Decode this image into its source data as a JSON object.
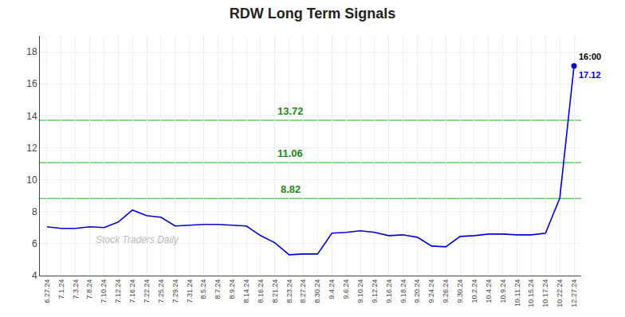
{
  "chart_data": {
    "type": "line",
    "title": "RDW Long Term Signals",
    "color": "#0000CC",
    "categories": [
      "6.27.24",
      "7.1.24",
      "7.3.24",
      "7.8.24",
      "7.10.24",
      "7.12.24",
      "7.16.24",
      "7.22.24",
      "7.25.24",
      "7.29.24",
      "7.31.24",
      "8.5.24",
      "8.7.24",
      "8.9.24",
      "8.14.24",
      "8.16.24",
      "8.21.24",
      "8.23.24",
      "8.27.24",
      "8.30.24",
      "9.4.24",
      "9.6.24",
      "9.10.24",
      "9.12.24",
      "9.16.24",
      "9.18.24",
      "9.20.24",
      "9.24.24",
      "9.26.24",
      "9.30.24",
      "10.2.24",
      "10.4.24",
      "10.9.24",
      "10.11.24",
      "10.15.24",
      "10.17.24",
      "10.22.24",
      "12.27.24"
    ],
    "values": [
      7.05,
      6.95,
      6.95,
      7.05,
      7.0,
      7.35,
      8.1,
      7.75,
      7.65,
      7.1,
      7.15,
      7.2,
      7.2,
      7.15,
      7.1,
      6.5,
      6.05,
      5.3,
      5.35,
      5.35,
      6.65,
      6.7,
      6.8,
      6.7,
      6.5,
      6.55,
      6.4,
      5.85,
      5.8,
      6.45,
      6.5,
      6.6,
      6.6,
      6.55,
      6.55,
      6.65,
      8.85,
      17.12
    ],
    "ylim": [
      4,
      19
    ],
    "yticks": [
      4,
      6,
      8,
      10,
      12,
      14,
      16,
      18
    ],
    "grid": true,
    "hlines": [
      {
        "value": 8.82,
        "label": "8.82",
        "color": "#66cc66",
        "label_color": "#228822"
      },
      {
        "value": 11.06,
        "label": "11.06",
        "color": "#66cc66",
        "label_color": "#228822"
      },
      {
        "value": 13.72,
        "label": "13.72",
        "color": "#66cc66",
        "label_color": "#228822"
      }
    ],
    "annotations": [
      {
        "text": "16:00",
        "color": "#000000"
      },
      {
        "text": "17.12",
        "color": "#0000CC"
      }
    ],
    "watermark": {
      "text": "Stock Traders Daily",
      "color": "#bbbbbb"
    }
  }
}
